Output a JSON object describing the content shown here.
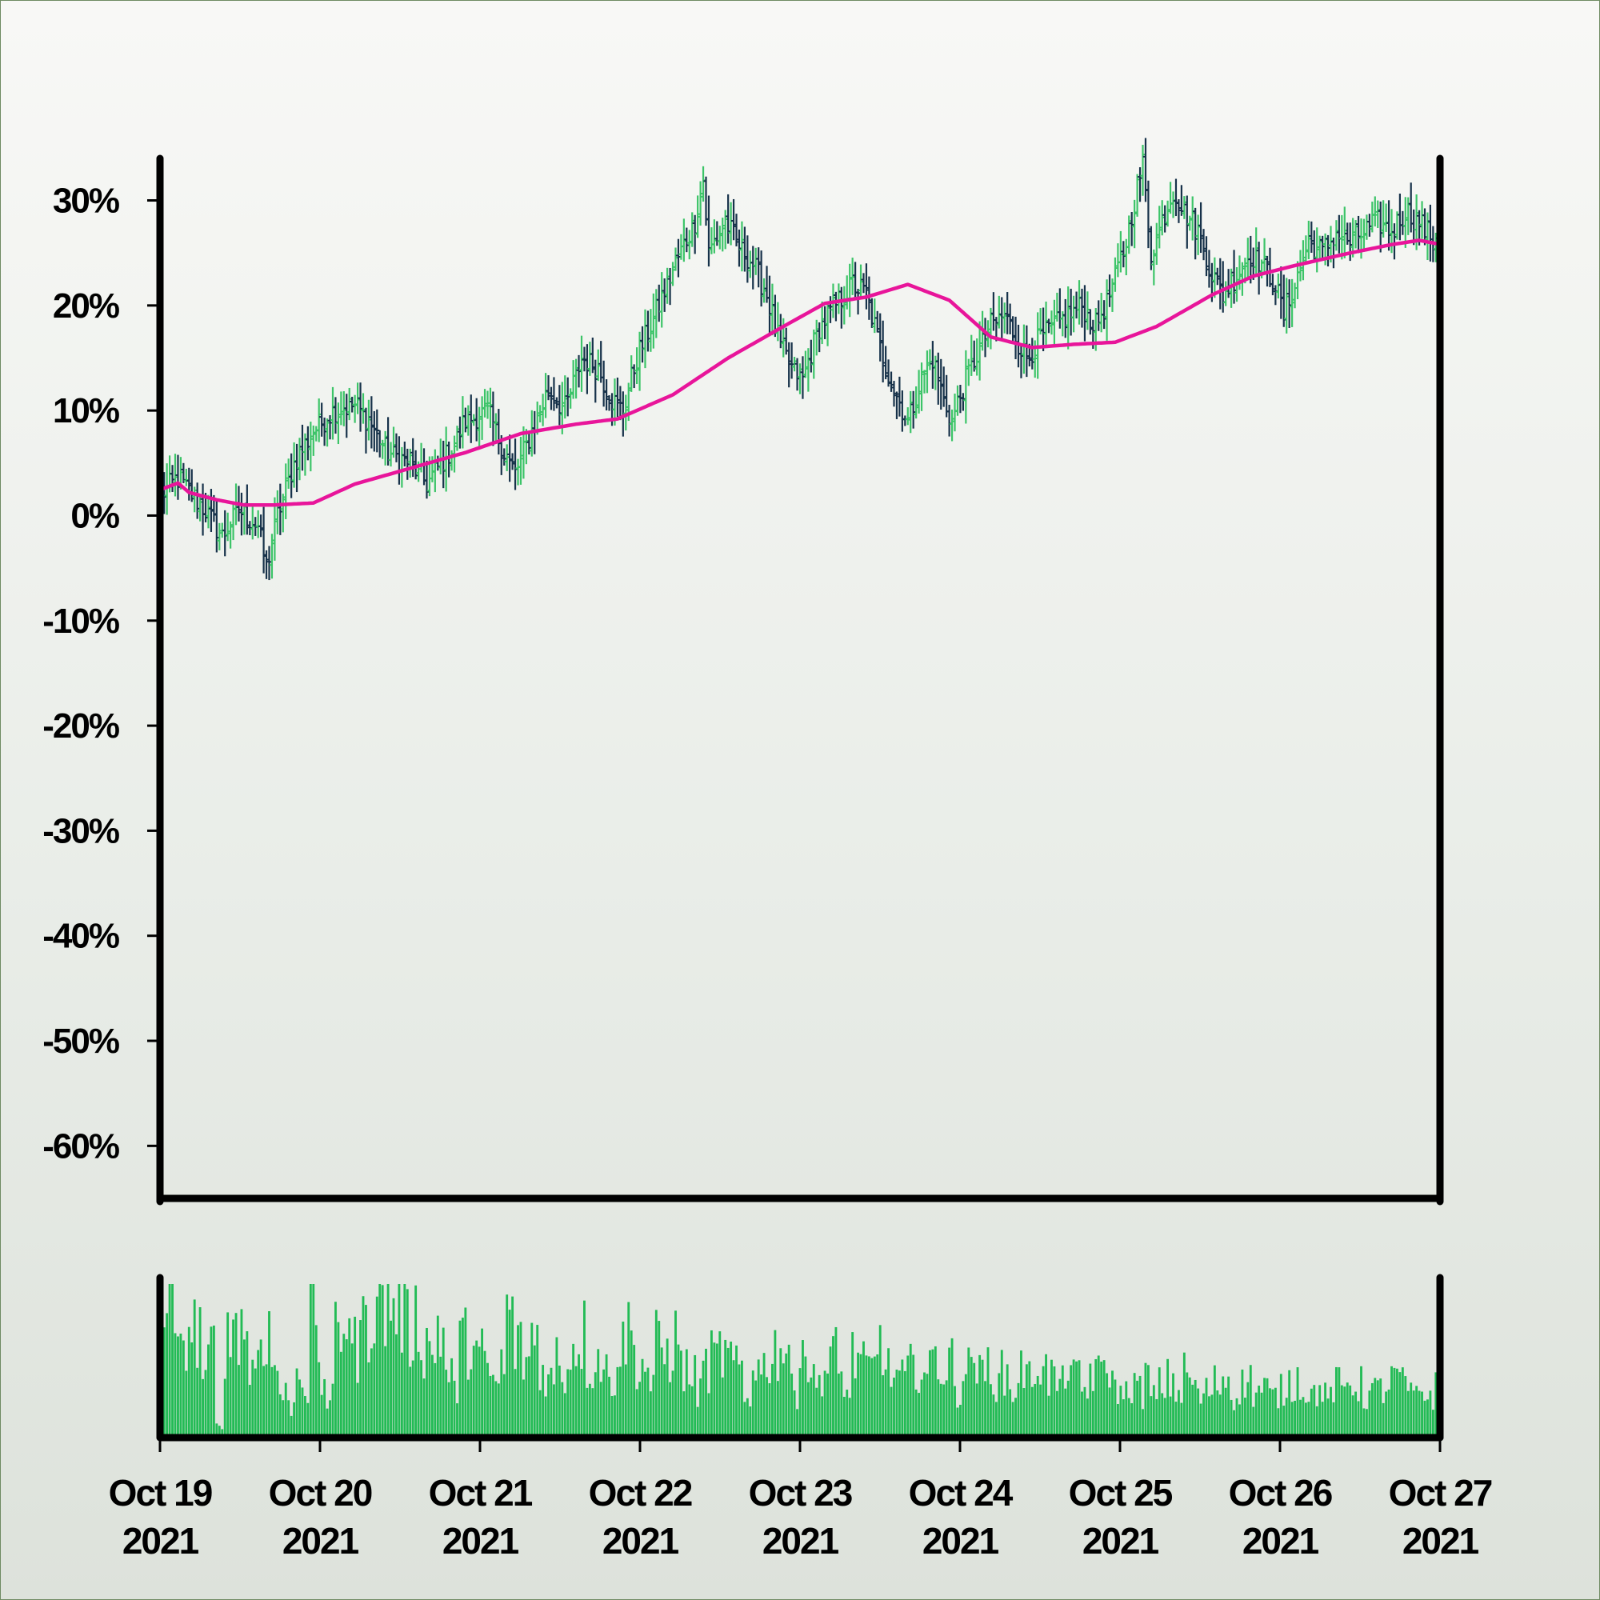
{
  "chart_data": {
    "type": "ohlc",
    "x_range": [
      "2021-10-19",
      "2021-10-27"
    ],
    "bar_interval_hours": 1,
    "y_unit": "%",
    "ylim": [
      -65,
      34
    ],
    "y_ticks": [
      30,
      20,
      10,
      0,
      -10,
      -20,
      -30,
      -40,
      -50,
      -60
    ],
    "y_tick_labels": [
      "30%",
      "20%",
      "10%",
      "0%",
      "-10%",
      "-20%",
      "-30%",
      "-40%",
      "-50%",
      "-60%"
    ],
    "x_ticks": [
      "2021-10-19",
      "2021-10-20",
      "2021-10-21",
      "2021-10-22",
      "2021-10-23",
      "2021-10-24",
      "2021-10-25",
      "2021-10-26",
      "2021-10-27"
    ],
    "x_tick_labels": [
      [
        "Oct 19",
        "2021"
      ],
      [
        "Oct 20",
        "2021"
      ],
      [
        "Oct 21",
        "2021"
      ],
      [
        "Oct 22",
        "2021"
      ],
      [
        "Oct 23",
        "2021"
      ],
      [
        "Oct 24",
        "2021"
      ],
      [
        "Oct 25",
        "2021"
      ],
      [
        "Oct 26",
        "2021"
      ],
      [
        "Oct 27",
        "2021"
      ]
    ],
    "price_anchors": [
      [
        0,
        2.0
      ],
      [
        6,
        3.5
      ],
      [
        16,
        0.5
      ],
      [
        22,
        -2.0
      ],
      [
        28,
        0.5
      ],
      [
        35,
        -1.0
      ],
      [
        38,
        -5.0
      ],
      [
        42,
        0.0
      ],
      [
        48,
        5.0
      ],
      [
        55,
        8.0
      ],
      [
        62,
        10.0
      ],
      [
        70,
        10.5
      ],
      [
        75,
        9.0
      ],
      [
        82,
        6.0
      ],
      [
        90,
        5.0
      ],
      [
        96,
        3.0
      ],
      [
        104,
        6.0
      ],
      [
        110,
        9.0
      ],
      [
        118,
        10.0
      ],
      [
        124,
        6.0
      ],
      [
        128,
        4.0
      ],
      [
        134,
        8.0
      ],
      [
        140,
        12.0
      ],
      [
        146,
        10.0
      ],
      [
        152,
        15.0
      ],
      [
        158,
        14.0
      ],
      [
        163,
        11.0
      ],
      [
        167,
        10.0
      ],
      [
        172,
        15.0
      ],
      [
        180,
        20.0
      ],
      [
        186,
        24.0
      ],
      [
        193,
        28.0
      ],
      [
        196,
        32.0
      ],
      [
        198,
        25.0
      ],
      [
        204,
        28.0
      ],
      [
        208,
        26.0
      ],
      [
        214,
        24.0
      ],
      [
        219,
        21.0
      ],
      [
        224,
        16.0
      ],
      [
        228,
        14.0
      ],
      [
        232,
        13.0
      ],
      [
        238,
        18.0
      ],
      [
        244,
        20.0
      ],
      [
        250,
        22.0
      ],
      [
        255,
        21.0
      ],
      [
        260,
        16.0
      ],
      [
        265,
        12.0
      ],
      [
        270,
        9.0
      ],
      [
        275,
        13.0
      ],
      [
        279,
        15.0
      ],
      [
        283,
        11.0
      ],
      [
        286,
        9.0
      ],
      [
        291,
        13.0
      ],
      [
        296,
        16.0
      ],
      [
        300,
        18.0
      ],
      [
        305,
        19.0
      ],
      [
        309,
        17.0
      ],
      [
        313,
        15.0
      ],
      [
        318,
        17.0
      ],
      [
        323,
        18.0
      ],
      [
        328,
        19.0
      ],
      [
        333,
        20.0
      ],
      [
        338,
        18.0
      ],
      [
        343,
        21.0
      ],
      [
        348,
        25.0
      ],
      [
        352,
        30.0
      ],
      [
        355,
        33.5
      ],
      [
        358,
        25.0
      ],
      [
        362,
        28.0
      ],
      [
        366,
        31.0
      ],
      [
        370,
        29.0
      ],
      [
        375,
        27.0
      ],
      [
        380,
        23.0
      ],
      [
        384,
        21.0
      ],
      [
        389,
        23.0
      ],
      [
        394,
        25.0
      ],
      [
        398,
        24.0
      ],
      [
        403,
        22.0
      ],
      [
        406,
        19.0
      ],
      [
        410,
        22.0
      ],
      [
        415,
        26.0
      ],
      [
        420,
        25.0
      ],
      [
        425,
        27.0
      ],
      [
        430,
        26.0
      ],
      [
        435,
        27.0
      ],
      [
        440,
        28.0
      ],
      [
        445,
        27.0
      ],
      [
        450,
        29.0
      ],
      [
        455,
        28.0
      ],
      [
        460,
        26.0
      ],
      [
        463,
        27.0
      ]
    ],
    "moving_average_anchors": [
      [
        0,
        2.5
      ],
      [
        6,
        3.1
      ],
      [
        10,
        2.2
      ],
      [
        20,
        1.5
      ],
      [
        30,
        1.0
      ],
      [
        40,
        1.0
      ],
      [
        55,
        1.2
      ],
      [
        70,
        3.0
      ],
      [
        90,
        4.5
      ],
      [
        110,
        6.0
      ],
      [
        130,
        7.8
      ],
      [
        150,
        8.7
      ],
      [
        165,
        9.2
      ],
      [
        185,
        11.5
      ],
      [
        205,
        15.0
      ],
      [
        225,
        18.0
      ],
      [
        240,
        20.2
      ],
      [
        255,
        20.8
      ],
      [
        270,
        22.0
      ],
      [
        285,
        20.5
      ],
      [
        300,
        17.0
      ],
      [
        315,
        16.0
      ],
      [
        330,
        16.3
      ],
      [
        345,
        16.5
      ],
      [
        360,
        18.0
      ],
      [
        380,
        21.0
      ],
      [
        395,
        22.8
      ],
      [
        410,
        23.8
      ],
      [
        430,
        25.0
      ],
      [
        445,
        25.8
      ],
      [
        455,
        26.2
      ],
      [
        463,
        25.8
      ]
    ],
    "volume_relative": [
      0.92,
      0.88,
      0.52,
      0.75,
      0.72,
      0.45,
      0.62,
      0.06,
      0.65,
      0.82,
      0.74,
      0.45,
      0.66,
      0.72,
      0.48,
      0.28,
      0.2,
      0.49,
      0.31,
      0.95,
      0.36,
      0.25,
      0.7,
      0.88,
      0.6,
      0.72,
      0.82,
      1.0,
      0.9,
      0.92,
      0.88,
      0.72,
      0.8,
      0.65,
      0.58,
      0.76,
      0.4,
      0.32,
      0.64,
      0.66,
      0.56,
      0.44,
      0.36,
      0.48,
      0.82,
      0.6,
      0.52,
      0.7,
      0.45,
      0.38,
      0.56,
      0.44,
      0.62,
      0.7,
      0.48,
      0.55,
      0.44,
      0.4,
      0.6,
      0.75,
      0.52,
      0.48,
      0.34,
      0.62,
      0.56,
      0.66,
      0.46,
      0.4,
      0.3,
      0.48,
      0.52,
      0.56,
      0.5,
      0.44,
      0.24,
      0.56,
      0.46,
      0.55,
      0.6,
      0.62,
      0.3,
      0.75,
      0.5,
      0.36,
      0.46,
      0.55,
      0.4,
      0.28,
      0.55,
      0.46,
      0.45,
      0.66,
      0.44,
      0.4,
      0.38,
      0.45,
      0.5,
      0.42,
      0.55,
      0.46,
      0.5,
      0.32,
      0.44,
      0.56,
      0.4,
      0.48,
      0.36,
      0.42,
      0.3,
      0.46,
      0.38,
      0.52,
      0.44,
      0.4,
      0.34,
      0.5,
      0.38,
      0.3,
      0.45,
      0.4,
      0.5,
      0.34,
      0.28,
      0.36,
      0.3,
      0.4,
      0.26,
      0.34,
      0.38,
      0.3,
      0.42,
      0.34,
      0.26,
      0.3,
      0.36,
      0.4,
      0.28,
      0.34,
      0.38,
      0.3,
      0.32,
      0.26,
      0.3,
      0.36,
      0.4,
      0.34,
      0.28,
      0.32,
      0.26,
      0.34,
      0.3,
      0.38,
      0.34,
      0.28,
      0.3,
      0.32,
      0.36,
      0.4,
      0.34,
      0.26,
      0.3,
      0.28,
      0.32
    ],
    "colors": {
      "up": "#3cc468",
      "down": "#17324a",
      "moving_average": "#e8159a",
      "volume": "#22bb55",
      "axes": "#000000"
    }
  }
}
